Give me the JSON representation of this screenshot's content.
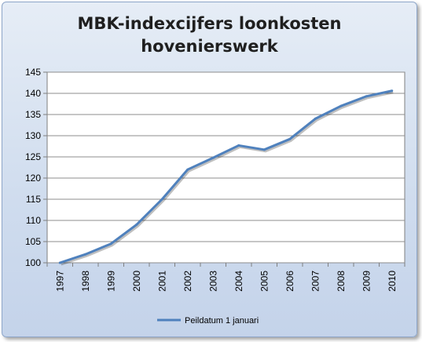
{
  "chart_data": {
    "type": "line",
    "title": "MBK-indexcijfers loonkosten\nhovenierswerk",
    "xlabel": "",
    "ylabel": "",
    "categories": [
      "1997",
      "1998",
      "1999",
      "2000",
      "2001",
      "2002",
      "2003",
      "2004",
      "2005",
      "2006",
      "2007",
      "2008",
      "2009",
      "2010"
    ],
    "series": [
      {
        "name": "Peildatum 1 januari",
        "color": "#4f81bd",
        "values": [
          100,
          102,
          104.5,
          109,
          115,
          122,
          124.8,
          127.7,
          126.7,
          129.2,
          134,
          137,
          139.3,
          140.6
        ]
      }
    ],
    "ylim": [
      100,
      145
    ],
    "yticks": [
      100,
      105,
      110,
      115,
      120,
      125,
      130,
      135,
      140,
      145
    ],
    "grid": "horizontal",
    "legend": "bottom"
  }
}
